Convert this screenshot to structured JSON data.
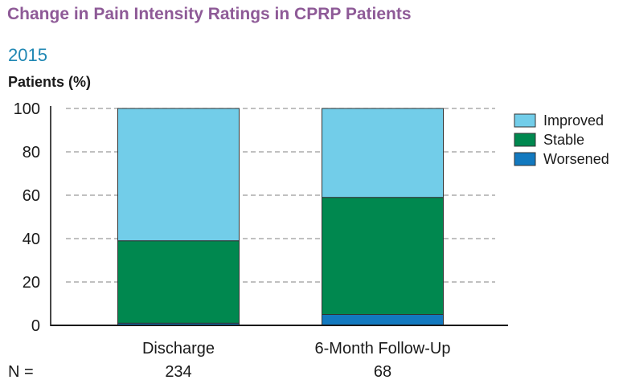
{
  "header": {
    "title": "Change in Pain Intensity Ratings in CPRP Patients",
    "subtitle": "2015"
  },
  "chart_data": {
    "type": "bar",
    "stacked": true,
    "title": "Change in Pain Intensity Ratings in CPRP Patients",
    "subtitle": "2015",
    "xlabel": "",
    "ylabel": "Patients (%)",
    "ylim": [
      0,
      100
    ],
    "yticks": [
      0,
      20,
      40,
      60,
      80,
      100
    ],
    "grid": true,
    "categories": [
      "Discharge",
      "6-Month Follow-Up"
    ],
    "n_label": "N =",
    "n_values": [
      "234",
      "68"
    ],
    "series": [
      {
        "name": "Worsened",
        "color": "#1279bf",
        "values": [
          1,
          5
        ]
      },
      {
        "name": "Stable",
        "color": "#00884f",
        "values": [
          38,
          54
        ]
      },
      {
        "name": "Improved",
        "color": "#72cde9",
        "values": [
          61,
          41
        ]
      }
    ],
    "legend": {
      "placement": "right",
      "order": [
        "Improved",
        "Stable",
        "Worsened"
      ]
    }
  }
}
